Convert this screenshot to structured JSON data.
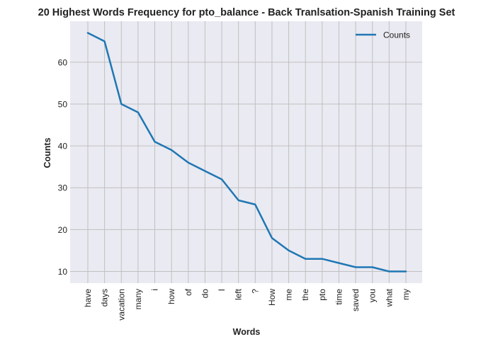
{
  "chart_data": {
    "type": "line",
    "title": "20 Highest Words Frequency for pto_balance - Back Tranlsation-Spanish Training Set",
    "xlabel": "Words",
    "ylabel": "Counts",
    "categories": [
      "have",
      "days",
      "vacation",
      "many",
      "i",
      "how",
      "of",
      "do",
      "I",
      "left",
      "?",
      "How",
      "me",
      "the",
      "pto",
      "time",
      "saved",
      "you",
      "what",
      "my"
    ],
    "series": [
      {
        "name": "Counts",
        "values": [
          67,
          65,
          50,
          48,
          41,
          39,
          36,
          34,
          32,
          27,
          26,
          18,
          15,
          13,
          13,
          12,
          11,
          11,
          10,
          10
        ]
      }
    ],
    "ylim": [
      7.2,
      69.8
    ],
    "yticks": [
      10,
      20,
      30,
      40,
      50,
      60
    ],
    "grid": true,
    "legend": {
      "position": "top-right",
      "entries": [
        "Counts"
      ]
    },
    "colors": {
      "line": "#1f77b4",
      "background": "#eaeaf2",
      "grid": "#c0c0c0"
    }
  }
}
